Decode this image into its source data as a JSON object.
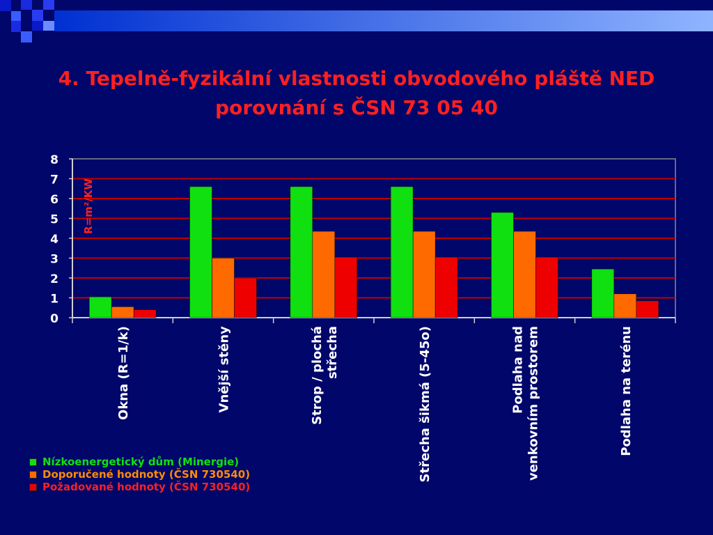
{
  "slide": {
    "title_line1": "4. Tepelně-fyzikální vlastnosti obvodového pláště NED",
    "title_line2": "porovnání s ČSN 73 05 40"
  },
  "colors": {
    "background": "#00066a",
    "title": "#ff2020",
    "header_bar_start": "#0030d0",
    "header_bar_end": "#8fb4ff",
    "gridline": "#c00000",
    "axis": "#d0d0d0",
    "text": "#ffffff",
    "ylabel": "#ff2020"
  },
  "chart_data": {
    "type": "bar",
    "categories": [
      "Okna (R=1/k)",
      "Vnější stěny",
      "Strop / plochá střecha",
      "Střecha šikmá (5-45o)",
      "Podlaha nad venkovním prostorem",
      "Podlaha na terénu"
    ],
    "category_lines": [
      [
        "Okna (R=1/k)"
      ],
      [
        "Vnější stěny"
      ],
      [
        "Strop / plochá",
        "střecha"
      ],
      [
        "Střecha šikmá (5-45o)"
      ],
      [
        "Podlaha nad",
        "venkovním prostorem"
      ],
      [
        "Podlaha na terénu"
      ]
    ],
    "series": [
      {
        "name": "Nízkoenergetický dům (Minergie)",
        "values": [
          1.05,
          6.6,
          6.6,
          6.6,
          5.3,
          2.45
        ],
        "color": "#10e010",
        "label_color": "#10e010"
      },
      {
        "name": "Doporučené hodnoty (ČSN 730540)",
        "values": [
          0.55,
          3.0,
          4.35,
          4.35,
          4.35,
          1.2
        ],
        "color": "#ff6a00",
        "label_color": "#ff8c00"
      },
      {
        "name": "Požadované hodnoty (ČSN 730540)",
        "values": [
          0.4,
          2.0,
          3.05,
          3.05,
          3.05,
          0.85
        ],
        "color": "#ee0000",
        "label_color": "#ff2020"
      }
    ],
    "ylabel": "R=m²/KW",
    "ylim": [
      0,
      8
    ],
    "yticks": [
      0,
      1,
      2,
      3,
      4,
      5,
      6,
      7,
      8
    ],
    "grid": true,
    "legend_position": "bottom-left"
  }
}
